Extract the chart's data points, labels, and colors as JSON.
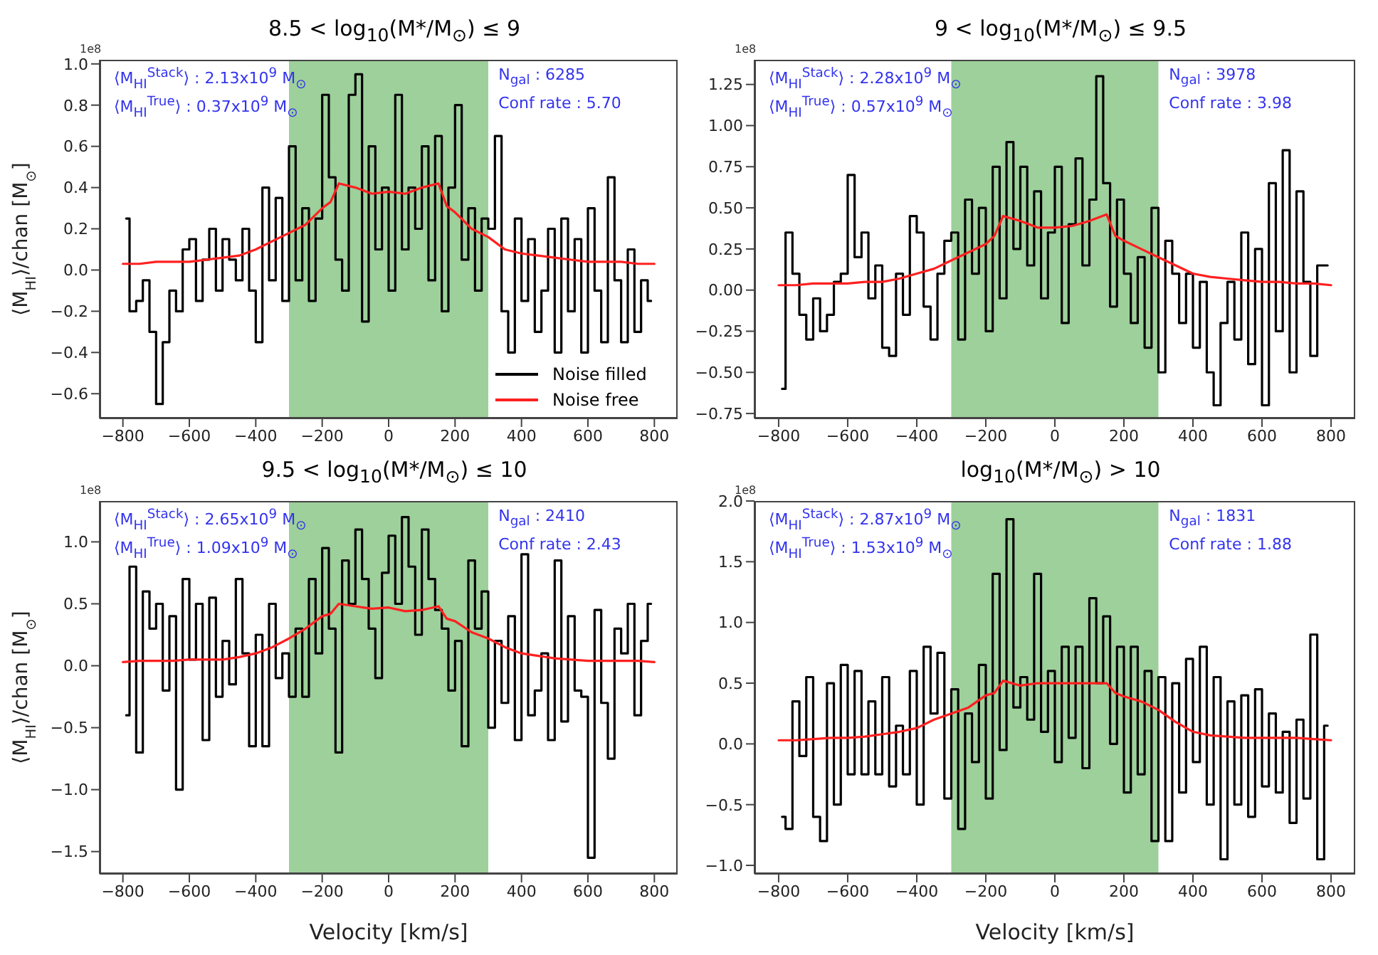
{
  "chart_data": [
    {
      "type": "line",
      "title": "8.5 < log$_{10}$(M*/M$_{⊙}$) ≤ 9",
      "ylabel": "⟨M$_{HI}$⟩/chan [M$_{⊙}$]",
      "legend": "bottom right",
      "xlim": [
        -870,
        870
      ],
      "xticks": [
        {
          "value": -800,
          "label": "−800"
        },
        {
          "value": -600,
          "label": "−600"
        },
        {
          "value": -400,
          "label": "−400"
        },
        {
          "value": -200,
          "label": "−200"
        },
        0,
        200,
        400,
        600,
        800
      ],
      "ylim": [
        -0.72,
        1.02
      ],
      "yticks": [
        {
          "value": -0.6,
          "label": "−0.6"
        },
        {
          "value": -0.4,
          "label": "−0.4"
        },
        {
          "value": -0.2,
          "label": "−0.2"
        },
        {
          "value": 0,
          "label": "0.0"
        },
        0.2,
        0.4,
        0.6,
        0.8,
        {
          "value": 1,
          "label": "1.0"
        }
      ],
      "bands": [
        {
          "axis": "x",
          "from": -300,
          "to": 300,
          "color": "#9dd09a"
        }
      ],
      "annotations": [
        "1e8",
        "⟨M$_{HI}$$^{Stack}$⟩ : 2.13x10$^{9}$ M$_{⊙}$",
        "⟨M$_{HI}$$^{True}$⟩ : 0.37x10$^{9}$ M$_{⊙}$",
        "N$_{gal}$ : 6285",
        "Conf rate : 5.70"
      ],
      "series": [
        {
          "type": "step",
          "name": "Noise filled",
          "color": "#000000",
          "x": [
            -790,
            -770,
            -750,
            -730,
            -710,
            -690,
            -670,
            -650,
            -630,
            -610,
            -590,
            -570,
            -550,
            -530,
            -510,
            -490,
            -470,
            -450,
            -430,
            -410,
            -390,
            -370,
            -350,
            -330,
            -310,
            -290,
            -270,
            -250,
            -230,
            -210,
            -190,
            -170,
            -150,
            -130,
            -110,
            -90,
            -70,
            -50,
            -30,
            -10,
            10,
            30,
            50,
            70,
            90,
            110,
            130,
            150,
            170,
            190,
            210,
            230,
            250,
            270,
            290,
            310,
            330,
            350,
            370,
            390,
            410,
            430,
            450,
            470,
            490,
            510,
            530,
            550,
            570,
            590,
            610,
            630,
            650,
            670,
            690,
            710,
            730,
            750,
            770,
            790
          ],
          "values": [
            0.25,
            -0.2,
            -0.15,
            -0.05,
            -0.3,
            -0.65,
            -0.35,
            -0.1,
            -0.2,
            0.1,
            0.15,
            -0.15,
            0.05,
            0.2,
            -0.1,
            0.15,
            0.05,
            -0.05,
            0.2,
            -0.1,
            -0.35,
            0.4,
            -0.05,
            0.35,
            -0.15,
            0.6,
            -0.05,
            0.3,
            -0.15,
            0.25,
            0.85,
            0.45,
            0.05,
            -0.1,
            0.85,
            0.95,
            -0.25,
            0.6,
            0.1,
            0.4,
            -0.1,
            0.85,
            0.1,
            0.4,
            0.2,
            0.6,
            -0.05,
            0.65,
            -0.2,
            0.4,
            0.8,
            0.05,
            0.3,
            -0.1,
            0.25,
            0.2,
            0.65,
            -0.2,
            -0.4,
            0.25,
            -0.15,
            0.15,
            -0.3,
            -0.1,
            0.2,
            -0.4,
            0.25,
            -0.2,
            0.15,
            -0.4,
            0.3,
            -0.1,
            -0.35,
            0.45,
            -0.05,
            -0.35,
            0.1,
            -0.3,
            -0.05,
            -0.15
          ]
        },
        {
          "type": "line",
          "name": "Noise free",
          "color": "#ff2020",
          "x": [
            -800,
            -750,
            -700,
            -650,
            -600,
            -550,
            -500,
            -450,
            -400,
            -350,
            -300,
            -250,
            -200,
            -175,
            -150,
            -100,
            -50,
            0,
            50,
            100,
            150,
            175,
            200,
            250,
            300,
            350,
            400,
            450,
            500,
            550,
            600,
            650,
            700,
            750,
            800
          ],
          "values": [
            0.03,
            0.03,
            0.04,
            0.04,
            0.04,
            0.05,
            0.06,
            0.07,
            0.1,
            0.14,
            0.18,
            0.22,
            0.3,
            0.33,
            0.42,
            0.4,
            0.37,
            0.38,
            0.37,
            0.4,
            0.42,
            0.31,
            0.28,
            0.2,
            0.16,
            0.1,
            0.08,
            0.07,
            0.06,
            0.05,
            0.04,
            0.04,
            0.04,
            0.03,
            0.03
          ]
        }
      ]
    },
    {
      "type": "line",
      "title": "9 < log$_{10}$(M*/M$_{⊙}$) ≤ 9.5",
      "xlim": [
        -870,
        870
      ],
      "xticks": [
        {
          "value": -800,
          "label": "−800"
        },
        {
          "value": -600,
          "label": "−600"
        },
        {
          "value": -400,
          "label": "−400"
        },
        {
          "value": -200,
          "label": "−200"
        },
        0,
        200,
        400,
        600,
        800
      ],
      "ylim": [
        -0.78,
        1.4
      ],
      "yticks": [
        {
          "value": -0.75,
          "label": "−0.75"
        },
        {
          "value": -0.5,
          "label": "−0.50"
        },
        {
          "value": -0.25,
          "label": "−0.25"
        },
        {
          "value": 0,
          "label": "0.00"
        },
        0.25,
        {
          "value": 0.5,
          "label": "0.50"
        },
        0.75,
        {
          "value": 1,
          "label": "1.00"
        },
        1.25
      ],
      "bands": [
        {
          "axis": "x",
          "from": -300,
          "to": 300,
          "color": "#9dd09a"
        }
      ],
      "annotations": [
        "1e8",
        "⟨M$_{HI}$$^{Stack}$⟩ : 2.28x10$^{9}$ M$_{⊙}$",
        "⟨M$_{HI}$$^{True}$⟩ : 0.57x10$^{9}$ M$_{⊙}$",
        "N$_{gal}$ : 3978",
        "Conf rate : 3.98"
      ],
      "series": [
        {
          "type": "step",
          "color": "#000000",
          "x": [
            -790,
            -770,
            -750,
            -730,
            -710,
            -690,
            -670,
            -650,
            -630,
            -610,
            -590,
            -570,
            -550,
            -530,
            -510,
            -490,
            -470,
            -450,
            -430,
            -410,
            -390,
            -370,
            -350,
            -330,
            -310,
            -290,
            -270,
            -250,
            -230,
            -210,
            -190,
            -170,
            -150,
            -130,
            -110,
            -90,
            -70,
            -50,
            -30,
            -10,
            10,
            30,
            50,
            70,
            90,
            110,
            130,
            150,
            170,
            190,
            210,
            230,
            250,
            270,
            290,
            310,
            330,
            350,
            370,
            390,
            410,
            430,
            450,
            470,
            490,
            510,
            530,
            550,
            570,
            590,
            610,
            630,
            650,
            670,
            690,
            710,
            730,
            750,
            770,
            790
          ],
          "values": [
            -0.6,
            0.35,
            0.1,
            -0.15,
            -0.3,
            -0.05,
            -0.25,
            -0.15,
            0.05,
            0.1,
            0.7,
            0.2,
            0.35,
            -0.05,
            0.15,
            -0.35,
            -0.4,
            0.1,
            -0.15,
            0.45,
            0.35,
            -0.1,
            -0.3,
            0.1,
            0.3,
            0.35,
            -0.3,
            0.55,
            0.1,
            0.5,
            -0.25,
            0.75,
            -0.05,
            0.9,
            0.25,
            0.75,
            0.15,
            0.6,
            -0.05,
            0.35,
            0.75,
            -0.2,
            0.4,
            0.8,
            0.15,
            0.55,
            1.3,
            0.65,
            -0.1,
            0.55,
            0.1,
            -0.2,
            0.2,
            -0.35,
            0.5,
            -0.5,
            0.3,
            0.1,
            -0.2,
            0.1,
            -0.35,
            0.05,
            -0.5,
            -0.7,
            -0.2,
            0.05,
            -0.3,
            0.35,
            -0.45,
            0.25,
            -0.7,
            0.65,
            -0.25,
            0.85,
            -0.5,
            0.6,
            0.05,
            -0.4,
            0.15,
            0.15
          ]
        },
        {
          "type": "line",
          "color": "#ff2020",
          "x": [
            -800,
            -750,
            -700,
            -650,
            -600,
            -550,
            -500,
            -450,
            -400,
            -350,
            -300,
            -250,
            -200,
            -175,
            -150,
            -100,
            -50,
            0,
            50,
            100,
            150,
            175,
            200,
            250,
            300,
            350,
            400,
            450,
            500,
            550,
            600,
            650,
            700,
            750,
            800
          ],
          "values": [
            0.03,
            0.03,
            0.04,
            0.04,
            0.04,
            0.05,
            0.05,
            0.07,
            0.1,
            0.13,
            0.18,
            0.23,
            0.28,
            0.33,
            0.45,
            0.42,
            0.38,
            0.38,
            0.39,
            0.42,
            0.46,
            0.33,
            0.3,
            0.25,
            0.2,
            0.15,
            0.1,
            0.08,
            0.07,
            0.06,
            0.05,
            0.05,
            0.04,
            0.04,
            0.03
          ]
        }
      ]
    },
    {
      "type": "line",
      "title": "9.5 < log$_{10}$(M*/M$_{⊙}$) ≤ 10",
      "xlabel": "Velocity [km/s]",
      "ylabel": "⟨M$_{HI}$⟩/chan [M$_{⊙}$]",
      "xlim": [
        -870,
        870
      ],
      "xticks": [
        {
          "value": -800,
          "label": "−800"
        },
        {
          "value": -600,
          "label": "−600"
        },
        {
          "value": -400,
          "label": "−400"
        },
        {
          "value": -200,
          "label": "−200"
        },
        0,
        200,
        400,
        600,
        800
      ],
      "ylim": [
        -1.68,
        1.33
      ],
      "yticks": [
        {
          "value": -1.5,
          "label": "−1.5"
        },
        {
          "value": -1,
          "label": "−1.0"
        },
        {
          "value": -0.5,
          "label": "−0.5"
        },
        {
          "value": 0,
          "label": "0.0"
        },
        0.5,
        {
          "value": 1,
          "label": "1.0"
        }
      ],
      "bands": [
        {
          "axis": "x",
          "from": -300,
          "to": 300,
          "color": "#9dd09a"
        }
      ],
      "annotations": [
        "1e8",
        "⟨M$_{HI}$$^{Stack}$⟩ : 2.65x10$^{9}$ M$_{⊙}$",
        "⟨M$_{HI}$$^{True}$⟩ : 1.09x10$^{9}$ M$_{⊙}$",
        "N$_{gal}$ : 2410",
        "Conf rate : 2.43"
      ],
      "series": [
        {
          "type": "step",
          "color": "#000000",
          "x": [
            -790,
            -770,
            -750,
            -730,
            -710,
            -690,
            -670,
            -650,
            -630,
            -610,
            -590,
            -570,
            -550,
            -530,
            -510,
            -490,
            -470,
            -450,
            -430,
            -410,
            -390,
            -370,
            -350,
            -330,
            -310,
            -290,
            -270,
            -250,
            -230,
            -210,
            -190,
            -170,
            -150,
            -130,
            -110,
            -90,
            -70,
            -50,
            -30,
            -10,
            10,
            30,
            50,
            70,
            90,
            110,
            130,
            150,
            170,
            190,
            210,
            230,
            250,
            270,
            290,
            310,
            330,
            350,
            370,
            390,
            410,
            430,
            450,
            470,
            490,
            510,
            530,
            550,
            570,
            590,
            610,
            630,
            650,
            670,
            690,
            710,
            730,
            750,
            770,
            790
          ],
          "values": [
            -0.4,
            0.8,
            -0.7,
            0.6,
            0.3,
            0.5,
            -0.2,
            0.4,
            -1.0,
            0.7,
            0.05,
            0.5,
            -0.6,
            0.55,
            -0.25,
            0.2,
            -0.15,
            0.7,
            0.1,
            -0.65,
            0.25,
            -0.65,
            0.5,
            -0.1,
            0.1,
            -0.25,
            0.3,
            -0.25,
            0.7,
            0.1,
            0.95,
            0.3,
            -0.7,
            0.85,
            0.5,
            1.1,
            0.7,
            0.3,
            -0.1,
            0.75,
            1.05,
            0.5,
            1.2,
            0.8,
            0.25,
            1.1,
            0.7,
            0.45,
            0.3,
            -0.2,
            0.2,
            -0.65,
            0.85,
            0.3,
            0.6,
            -0.5,
            0.2,
            -0.3,
            0.4,
            -0.6,
            0.9,
            -0.4,
            -0.2,
            0.1,
            -0.6,
            0.85,
            -0.45,
            0.4,
            -0.2,
            -0.25,
            -1.55,
            0.45,
            -0.3,
            -0.75,
            0.3,
            0.1,
            0.5,
            -0.4,
            0.2,
            0.5
          ]
        },
        {
          "type": "line",
          "color": "#ff2020",
          "x": [
            -800,
            -750,
            -700,
            -650,
            -600,
            -550,
            -500,
            -450,
            -400,
            -350,
            -300,
            -250,
            -200,
            -175,
            -150,
            -100,
            -50,
            0,
            50,
            100,
            150,
            175,
            200,
            250,
            300,
            350,
            400,
            450,
            500,
            550,
            600,
            650,
            700,
            750,
            800
          ],
          "values": [
            0.03,
            0.04,
            0.04,
            0.04,
            0.05,
            0.05,
            0.05,
            0.07,
            0.1,
            0.15,
            0.22,
            0.3,
            0.4,
            0.42,
            0.5,
            0.48,
            0.46,
            0.47,
            0.44,
            0.45,
            0.48,
            0.38,
            0.36,
            0.27,
            0.22,
            0.15,
            0.1,
            0.08,
            0.06,
            0.05,
            0.04,
            0.04,
            0.04,
            0.04,
            0.03
          ]
        }
      ]
    },
    {
      "type": "line",
      "title": "log$_{10}$(M*/M$_{⊙}$) > 10",
      "xlabel": "Velocity [km/s]",
      "xlim": [
        -870,
        870
      ],
      "xticks": [
        {
          "value": -800,
          "label": "−800"
        },
        {
          "value": -600,
          "label": "−600"
        },
        {
          "value": -400,
          "label": "−400"
        },
        {
          "value": -200,
          "label": "−200"
        },
        0,
        200,
        400,
        600,
        800
      ],
      "ylim": [
        -1.07,
        2.0
      ],
      "yticks": [
        {
          "value": -1,
          "label": "−1.0"
        },
        {
          "value": -0.5,
          "label": "−0.5"
        },
        {
          "value": 0,
          "label": "0.0"
        },
        0.5,
        {
          "value": 1,
          "label": "1.0"
        },
        1.5,
        {
          "value": 2,
          "label": "2.0"
        }
      ],
      "bands": [
        {
          "axis": "x",
          "from": -300,
          "to": 300,
          "color": "#9dd09a"
        }
      ],
      "annotations": [
        "1e8",
        "⟨M$_{HI}$$^{Stack}$⟩ : 2.87x10$^{9}$ M$_{⊙}$",
        "⟨M$_{HI}$$^{True}$⟩ : 1.53x10$^{9}$ M$_{⊙}$",
        "N$_{gal}$ : 1831",
        "Conf rate : 1.88"
      ],
      "series": [
        {
          "type": "step",
          "color": "#000000",
          "x": [
            -790,
            -770,
            -750,
            -730,
            -710,
            -690,
            -670,
            -650,
            -630,
            -610,
            -590,
            -570,
            -550,
            -530,
            -510,
            -490,
            -470,
            -450,
            -430,
            -410,
            -390,
            -370,
            -350,
            -330,
            -310,
            -290,
            -270,
            -250,
            -230,
            -210,
            -190,
            -170,
            -150,
            -130,
            -110,
            -90,
            -70,
            -50,
            -30,
            -10,
            10,
            30,
            50,
            70,
            90,
            110,
            130,
            150,
            170,
            190,
            210,
            230,
            250,
            270,
            290,
            310,
            330,
            350,
            370,
            390,
            410,
            430,
            450,
            470,
            490,
            510,
            530,
            550,
            570,
            590,
            610,
            630,
            650,
            670,
            690,
            710,
            730,
            750,
            770,
            790
          ],
          "values": [
            -0.6,
            -0.7,
            0.35,
            -0.1,
            0.55,
            -0.6,
            -0.8,
            0.5,
            -0.5,
            0.65,
            -0.25,
            0.6,
            -0.25,
            0.35,
            -0.25,
            0.55,
            -0.35,
            0.15,
            -0.25,
            0.6,
            -0.5,
            0.8,
            0.25,
            0.75,
            -0.45,
            0.45,
            -0.7,
            0.25,
            -0.15,
            0.65,
            -0.45,
            1.4,
            -0.05,
            1.85,
            0.3,
            0.55,
            0.2,
            1.4,
            0.1,
            0.6,
            -0.15,
            0.8,
            0.05,
            0.8,
            -0.2,
            1.2,
            0.5,
            1.05,
            0.0,
            0.8,
            -0.4,
            0.8,
            -0.25,
            0.6,
            -0.8,
            0.55,
            -0.8,
            0.5,
            -0.4,
            0.7,
            -0.15,
            0.8,
            -0.5,
            0.55,
            -0.95,
            0.35,
            -0.5,
            0.4,
            -0.6,
            0.45,
            -0.35,
            0.25,
            -0.4,
            0.1,
            -0.65,
            0.2,
            -0.45,
            0.9,
            -0.95,
            0.15
          ]
        },
        {
          "type": "line",
          "color": "#ff2020",
          "x": [
            -800,
            -750,
            -700,
            -650,
            -600,
            -550,
            -500,
            -450,
            -400,
            -350,
            -300,
            -250,
            -200,
            -175,
            -150,
            -100,
            -50,
            0,
            50,
            100,
            150,
            175,
            200,
            250,
            300,
            350,
            400,
            450,
            500,
            550,
            600,
            650,
            700,
            750,
            800
          ],
          "values": [
            0.03,
            0.03,
            0.04,
            0.05,
            0.05,
            0.06,
            0.08,
            0.1,
            0.13,
            0.2,
            0.25,
            0.3,
            0.4,
            0.42,
            0.52,
            0.48,
            0.5,
            0.5,
            0.5,
            0.5,
            0.5,
            0.42,
            0.39,
            0.35,
            0.28,
            0.18,
            0.1,
            0.07,
            0.06,
            0.05,
            0.05,
            0.05,
            0.05,
            0.04,
            0.03
          ]
        }
      ]
    }
  ]
}
